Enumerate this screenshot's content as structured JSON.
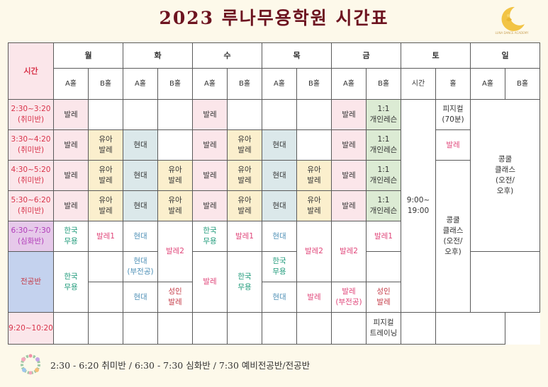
{
  "title": "2023 루나무용학원 시간표",
  "logo_text": "LUNA DANCE ACADEMY",
  "header": {
    "time": "시간",
    "days": [
      "월",
      "화",
      "수",
      "목",
      "금",
      "토",
      "일"
    ],
    "hall_a": "A홀",
    "hall_b": "B홀",
    "sat_time": "시간",
    "sat_hall": "홀"
  },
  "times": [
    "2:30~3:20\n(취미반)",
    "3:30~4:20\n(취미반)",
    "4:30~5:20\n(취미반)",
    "5:30~6:20\n(취미반)",
    "6:30~7:30\n(심화반)",
    "전공반",
    "9:20~10:20"
  ],
  "classes": {
    "ballet": "발레",
    "yuah_ballet": "유아\n발레",
    "hyundai": "현대",
    "private": "1:1\n개인레슨",
    "korean": "한국\n무용",
    "ballet1": "발레1",
    "ballet2": "발레2",
    "hyundai_bu": "현대\n(부전공)",
    "ballet_bu": "발레\n(부전공)",
    "adult_ballet": "성인\n발레",
    "pilates": "피지컬\n트레이닝"
  },
  "saturday": {
    "time_range": "9:00~\n19:00",
    "physical_70": "피지컬\n(70분)",
    "ballet": "발레",
    "concours": "콩쿨\n클래스\n(오전/\n오후)"
  },
  "sunday": {
    "concours": "콩쿨\n클래스\n(오전/\n오후)"
  },
  "footer": "2:30 - 6:20 취미반 / 6:30 - 7:30 심화반 / 7:30 예비전공반/전공반"
}
